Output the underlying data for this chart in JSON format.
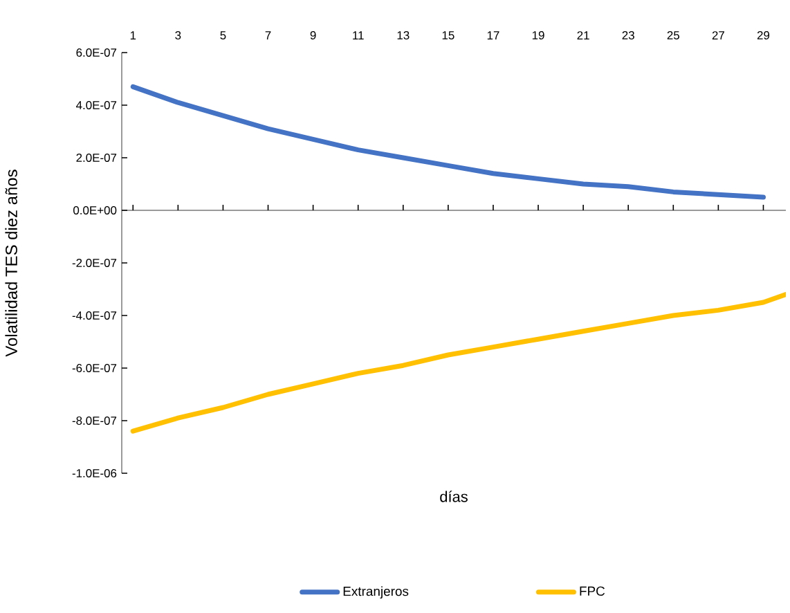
{
  "chart_data": {
    "type": "line",
    "xlabel": "días",
    "ylabel": "Volatilidad TES diez años",
    "xlim": [
      0.5,
      30
    ],
    "xticks": [
      1,
      3,
      5,
      7,
      9,
      11,
      13,
      15,
      17,
      19,
      21,
      23,
      25,
      27,
      29
    ],
    "ylim": [
      -1e-06,
      6e-07
    ],
    "yticks": [
      {
        "value": -1e-06,
        "label": "-1.0E-06"
      },
      {
        "value": -8e-07,
        "label": "-8.0E-07"
      },
      {
        "value": -6e-07,
        "label": "-6.0E-07"
      },
      {
        "value": -4e-07,
        "label": "-4.0E-07"
      },
      {
        "value": -2e-07,
        "label": "-2.0E-07"
      },
      {
        "value": 0,
        "label": "0.0E+00"
      },
      {
        "value": 2e-07,
        "label": "2.0E-07"
      },
      {
        "value": 4e-07,
        "label": "4.0E-07"
      },
      {
        "value": 6e-07,
        "label": "6.0E-07"
      }
    ],
    "series": [
      {
        "name": "Extranjeros",
        "color": "#4472c4",
        "x": [
          1,
          3,
          5,
          7,
          9,
          11,
          13,
          15,
          17,
          19,
          21,
          23,
          25,
          27,
          29
        ],
        "values": [
          4.7e-07,
          4.1e-07,
          3.6e-07,
          3.1e-07,
          2.7e-07,
          2.3e-07,
          2e-07,
          1.7e-07,
          1.4e-07,
          1.2e-07,
          1e-07,
          9e-08,
          7e-08,
          6e-08,
          5e-08
        ]
      },
      {
        "name": "FPC",
        "color": "#ffc000",
        "x": [
          1,
          3,
          5,
          7,
          9,
          11,
          13,
          15,
          17,
          19,
          21,
          23,
          25,
          27,
          29,
          30
        ],
        "values": [
          -8.4e-07,
          -7.9e-07,
          -7.5e-07,
          -7e-07,
          -6.6e-07,
          -6.2e-07,
          -5.9e-07,
          -5.5e-07,
          -5.2e-07,
          -4.9e-07,
          -4.6e-07,
          -4.3e-07,
          -4e-07,
          -3.8e-07,
          -3.5e-07,
          -3.2e-07
        ]
      }
    ],
    "legend": "bottom",
    "marker": "none",
    "line_style": "solid"
  }
}
